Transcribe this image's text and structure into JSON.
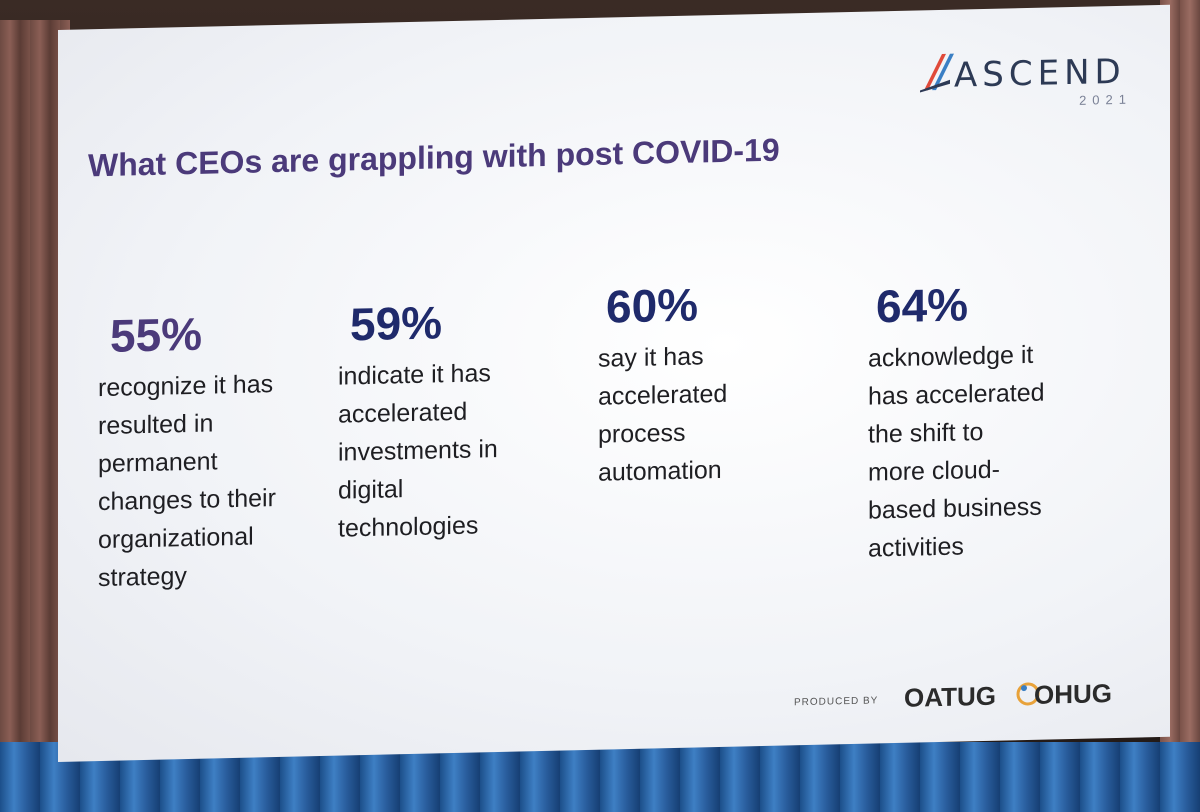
{
  "brand": {
    "name": "ASCEND",
    "year": "2021"
  },
  "slide": {
    "title": "What CEOs are grappling with post COVID-19"
  },
  "stats": [
    {
      "value": "55%",
      "text": "recognize it has\nresulted in\npermanent\nchanges to their\norganizational\nstrategy"
    },
    {
      "value": "59%",
      "text": "indicate it has\naccelerated\ninvestments in\ndigital\ntechnologies"
    },
    {
      "value": "60%",
      "text": "say it has\naccelerated\nprocess\nautomation"
    },
    {
      "value": "64%",
      "text": "acknowledge it\nhas accelerated\nthe shift to\nmore cloud-\nbased business\nactivities"
    }
  ],
  "footer": {
    "produced_by": "PRODUCED BY",
    "org1": "OATUG",
    "org2": "OHUG"
  },
  "colors": {
    "title": "#4b3a7a",
    "stat_value": "#1f2a6b",
    "text": "#1e1e22"
  }
}
